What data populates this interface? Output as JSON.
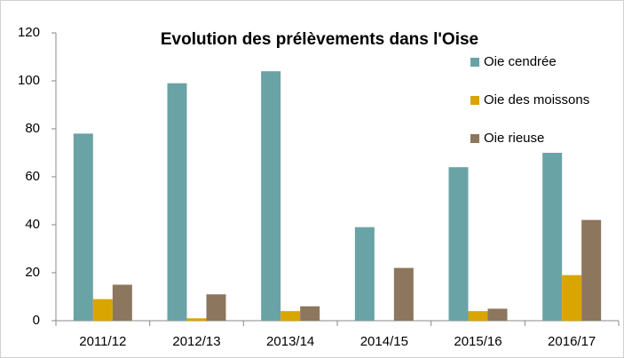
{
  "chart_data": {
    "type": "bar",
    "title": "Evolution des prélèvements dans l'Oise",
    "categories": [
      "2011/12",
      "2012/13",
      "2013/14",
      "2014/15",
      "2015/16",
      "2016/17"
    ],
    "series": [
      {
        "name": "Oie cendrée",
        "color": "#6aa3a5",
        "values": [
          78,
          99,
          104,
          39,
          64,
          70
        ]
      },
      {
        "name": "Oie des moissons",
        "color": "#d9a500",
        "values": [
          9,
          1,
          4,
          0,
          4,
          19
        ]
      },
      {
        "name": "Oie rieuse",
        "color": "#8d765e",
        "values": [
          15,
          11,
          6,
          22,
          5,
          42
        ]
      }
    ],
    "ylim": [
      0,
      120
    ],
    "yticks": [
      0,
      20,
      40,
      60,
      80,
      100,
      120
    ],
    "grid": false,
    "legend": "right"
  }
}
